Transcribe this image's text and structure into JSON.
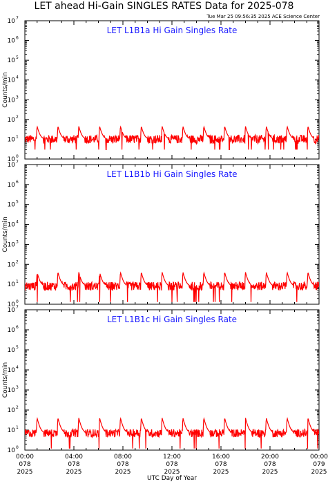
{
  "header": {
    "title": "LET ahead Hi-Gain SINGLES RATES Data for 2025-078",
    "timestamp": "Tue Mar 25 09:56:35 2025 ACE Science Center"
  },
  "colors": {
    "series": "#ff0000",
    "panel_title": "#1a1aff",
    "axes": "#000000"
  },
  "x_axis": {
    "label": "UTC Day of Year",
    "ticks": [
      {
        "time": "00:00",
        "doy": "078",
        "year": "2025"
      },
      {
        "time": "04:00",
        "doy": "078",
        "year": "2025"
      },
      {
        "time": "08:00",
        "doy": "078",
        "year": "2025"
      },
      {
        "time": "12:00",
        "doy": "078",
        "year": "2025"
      },
      {
        "time": "16:00",
        "doy": "078",
        "year": "2025"
      },
      {
        "time": "20:00",
        "doy": "078",
        "year": "2025"
      },
      {
        "time": "00:00",
        "doy": "079",
        "year": "2025"
      }
    ]
  },
  "chart_data": [
    {
      "type": "line",
      "title": "LET L1B1a Hi Gain Singles Rate",
      "ylabel": "Counts/min",
      "yscale": "log",
      "ylim": [
        1,
        10000000
      ],
      "y_tick_exponents": [
        0,
        1,
        2,
        3,
        4,
        5,
        6,
        7
      ],
      "xlim_hours": [
        0,
        24
      ],
      "baseline": 10,
      "noise_log_amp": 0.22,
      "peak_value": 45,
      "peak_hours": [
        1.0,
        2.7,
        4.4,
        6.1,
        7.8,
        9.5,
        11.2,
        12.9,
        14.6,
        16.3,
        18.0,
        19.7,
        21.4,
        23.1
      ],
      "dip_value": 3
    },
    {
      "type": "line",
      "title": "LET L1B1b Hi Gain Singles Rate",
      "ylabel": "Counts/min",
      "yscale": "log",
      "ylim": [
        1,
        10000000
      ],
      "y_tick_exponents": [
        0,
        1,
        2,
        3,
        4,
        5,
        6,
        7
      ],
      "xlim_hours": [
        0,
        24
      ],
      "baseline": 8,
      "noise_log_amp": 0.22,
      "peak_value": 40,
      "peak_hours": [
        1.0,
        2.7,
        4.4,
        6.1,
        7.8,
        9.5,
        11.2,
        12.9,
        14.6,
        16.3,
        18.0,
        19.7,
        21.4,
        23.1
      ],
      "dip_value": 1.3
    },
    {
      "type": "line",
      "title": "LET L1B1c Hi Gain Singles Rate",
      "ylabel": "Counts/min",
      "yscale": "log",
      "ylim": [
        1,
        10000000
      ],
      "y_tick_exponents": [
        0,
        1,
        2,
        3,
        4,
        5,
        6,
        7
      ],
      "xlim_hours": [
        0,
        24
      ],
      "baseline": 7,
      "noise_log_amp": 0.2,
      "peak_value": 40,
      "peak_hours": [
        1.0,
        2.7,
        4.4,
        6.1,
        7.8,
        9.5,
        11.2,
        12.9,
        14.6,
        16.3,
        18.0,
        19.7,
        21.4,
        23.1
      ],
      "dip_value": 1.2
    }
  ]
}
